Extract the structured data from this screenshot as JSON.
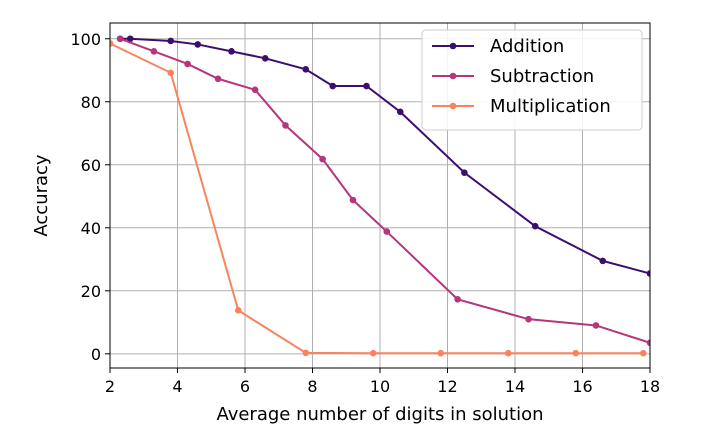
{
  "chart_data": {
    "type": "line",
    "xlabel": "Average number of digits in solution",
    "ylabel": "Accuracy",
    "xlim": [
      2,
      18
    ],
    "ylim": [
      -4.5,
      105
    ],
    "xticks": [
      2,
      4,
      6,
      8,
      10,
      12,
      14,
      16,
      18
    ],
    "yticks": [
      0,
      20,
      40,
      60,
      80,
      100
    ],
    "grid": true,
    "legend_position": "top-right",
    "series": [
      {
        "name": "Addition",
        "color": "#3b0f70",
        "x": [
          2.3,
          2.6,
          3.8,
          4.6,
          5.6,
          6.6,
          7.8,
          8.6,
          9.6,
          10.6,
          12.5,
          14.6,
          16.6,
          18.0
        ],
        "y": [
          100,
          100,
          99.3,
          98.2,
          96.0,
          93.8,
          90.3,
          85.0,
          85.0,
          76.8,
          57.5,
          40.5,
          29.5,
          25.5
        ]
      },
      {
        "name": "Subtraction",
        "color": "#b5367a",
        "x": [
          2.3,
          3.3,
          4.3,
          5.2,
          6.3,
          7.2,
          8.3,
          9.2,
          10.2,
          12.3,
          14.4,
          16.4,
          18.0
        ],
        "y": [
          100,
          96.0,
          92.0,
          87.3,
          83.8,
          72.5,
          61.8,
          48.8,
          38.8,
          17.3,
          11.0,
          9.0,
          3.5
        ]
      },
      {
        "name": "Multiplication",
        "color": "#f7845d",
        "x": [
          2.0,
          3.8,
          5.8,
          7.8,
          9.8,
          11.8,
          13.8,
          15.8,
          17.8
        ],
        "y": [
          98.5,
          89.2,
          13.8,
          0.3,
          0.2,
          0.2,
          0.2,
          0.2,
          0.2
        ]
      }
    ]
  }
}
